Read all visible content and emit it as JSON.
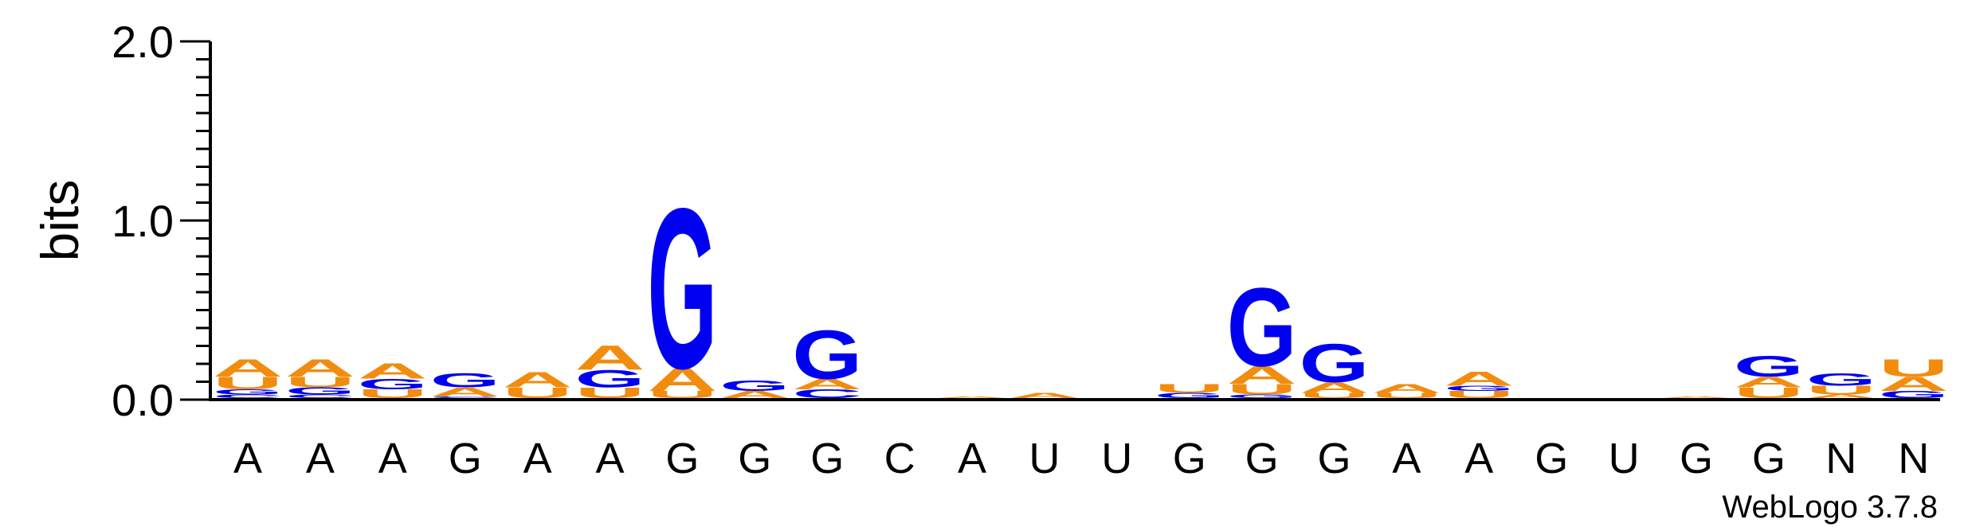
{
  "chart_data": {
    "type": "sequence-logo",
    "ylabel": "bits",
    "ylim": [
      0,
      2.0
    ],
    "yticks": [
      {
        "value": 0.0,
        "label": "0.0"
      },
      {
        "value": 1.0,
        "label": "1.0"
      },
      {
        "value": 2.0,
        "label": "2.0"
      }
    ],
    "yminor_step": 0.1,
    "watermark": "WebLogo 3.7.8",
    "colors": {
      "A": "#f28c0f",
      "U": "#f28c0f",
      "G": "#0000f0",
      "C": "#0000f0"
    },
    "positions": [
      {
        "label": "A",
        "stack": [
          {
            "letter": "C",
            "bits": 0.02
          },
          {
            "letter": "G",
            "bits": 0.03
          },
          {
            "letter": "U",
            "bits": 0.07
          },
          {
            "letter": "A",
            "bits": 0.1
          }
        ]
      },
      {
        "label": "A",
        "stack": [
          {
            "letter": "C",
            "bits": 0.02
          },
          {
            "letter": "G",
            "bits": 0.04
          },
          {
            "letter": "U",
            "bits": 0.06
          },
          {
            "letter": "A",
            "bits": 0.1
          }
        ]
      },
      {
        "label": "A",
        "stack": [
          {
            "letter": "U",
            "bits": 0.05
          },
          {
            "letter": "G",
            "bits": 0.06
          },
          {
            "letter": "A",
            "bits": 0.09
          }
        ]
      },
      {
        "label": "G",
        "stack": [
          {
            "letter": "C",
            "bits": 0.01
          },
          {
            "letter": "A",
            "bits": 0.05
          },
          {
            "letter": "G",
            "bits": 0.08
          }
        ]
      },
      {
        "label": "A",
        "stack": [
          {
            "letter": "U",
            "bits": 0.06
          },
          {
            "letter": "A",
            "bits": 0.09
          }
        ]
      },
      {
        "label": "A",
        "stack": [
          {
            "letter": "U",
            "bits": 0.06
          },
          {
            "letter": "G",
            "bits": 0.1
          },
          {
            "letter": "A",
            "bits": 0.14
          }
        ]
      },
      {
        "label": "G",
        "stack": [
          {
            "letter": "U",
            "bits": 0.04
          },
          {
            "letter": "A",
            "bits": 0.13
          },
          {
            "letter": "G",
            "bits": 0.92
          }
        ]
      },
      {
        "label": "G",
        "stack": [
          {
            "letter": "A",
            "bits": 0.04
          },
          {
            "letter": "G",
            "bits": 0.06
          }
        ]
      },
      {
        "label": "G",
        "stack": [
          {
            "letter": "C",
            "bits": 0.05
          },
          {
            "letter": "A",
            "bits": 0.06
          },
          {
            "letter": "G",
            "bits": 0.28
          }
        ]
      },
      {
        "label": "C",
        "stack": []
      },
      {
        "label": "A",
        "stack": [
          {
            "letter": "A",
            "bits": 0.01
          }
        ]
      },
      {
        "label": "U",
        "stack": [
          {
            "letter": "A",
            "bits": 0.03
          }
        ]
      },
      {
        "label": "U",
        "stack": []
      },
      {
        "label": "G",
        "stack": [
          {
            "letter": "G",
            "bits": 0.03
          },
          {
            "letter": "U",
            "bits": 0.05
          }
        ]
      },
      {
        "label": "G",
        "stack": [
          {
            "letter": "G",
            "bits": 0.02
          },
          {
            "letter": "U",
            "bits": 0.06
          },
          {
            "letter": "A",
            "bits": 0.1
          },
          {
            "letter": "G",
            "bits": 0.45
          }
        ]
      },
      {
        "label": "G",
        "stack": [
          {
            "letter": "U",
            "bits": 0.03
          },
          {
            "letter": "A",
            "bits": 0.06
          },
          {
            "letter": "G",
            "bits": 0.22
          }
        ]
      },
      {
        "label": "A",
        "stack": [
          {
            "letter": "U",
            "bits": 0.03
          },
          {
            "letter": "A",
            "bits": 0.05
          }
        ]
      },
      {
        "label": "A",
        "stack": [
          {
            "letter": "U",
            "bits": 0.04
          },
          {
            "letter": "G",
            "bits": 0.03
          },
          {
            "letter": "A",
            "bits": 0.08
          }
        ]
      },
      {
        "label": "G",
        "stack": []
      },
      {
        "label": "U",
        "stack": []
      },
      {
        "label": "G",
        "stack": [
          {
            "letter": "A",
            "bits": 0.01
          }
        ]
      },
      {
        "label": "G",
        "stack": [
          {
            "letter": "U",
            "bits": 0.06
          },
          {
            "letter": "A",
            "bits": 0.06
          },
          {
            "letter": "G",
            "bits": 0.12
          }
        ]
      },
      {
        "label": "N",
        "stack": [
          {
            "letter": "A",
            "bits": 0.02
          },
          {
            "letter": "U",
            "bits": 0.05
          },
          {
            "letter": "G",
            "bits": 0.07
          }
        ]
      },
      {
        "label": "N",
        "stack": [
          {
            "letter": "G",
            "bits": 0.04
          },
          {
            "letter": "A",
            "bits": 0.08
          },
          {
            "letter": "U",
            "bits": 0.1
          }
        ]
      }
    ]
  }
}
